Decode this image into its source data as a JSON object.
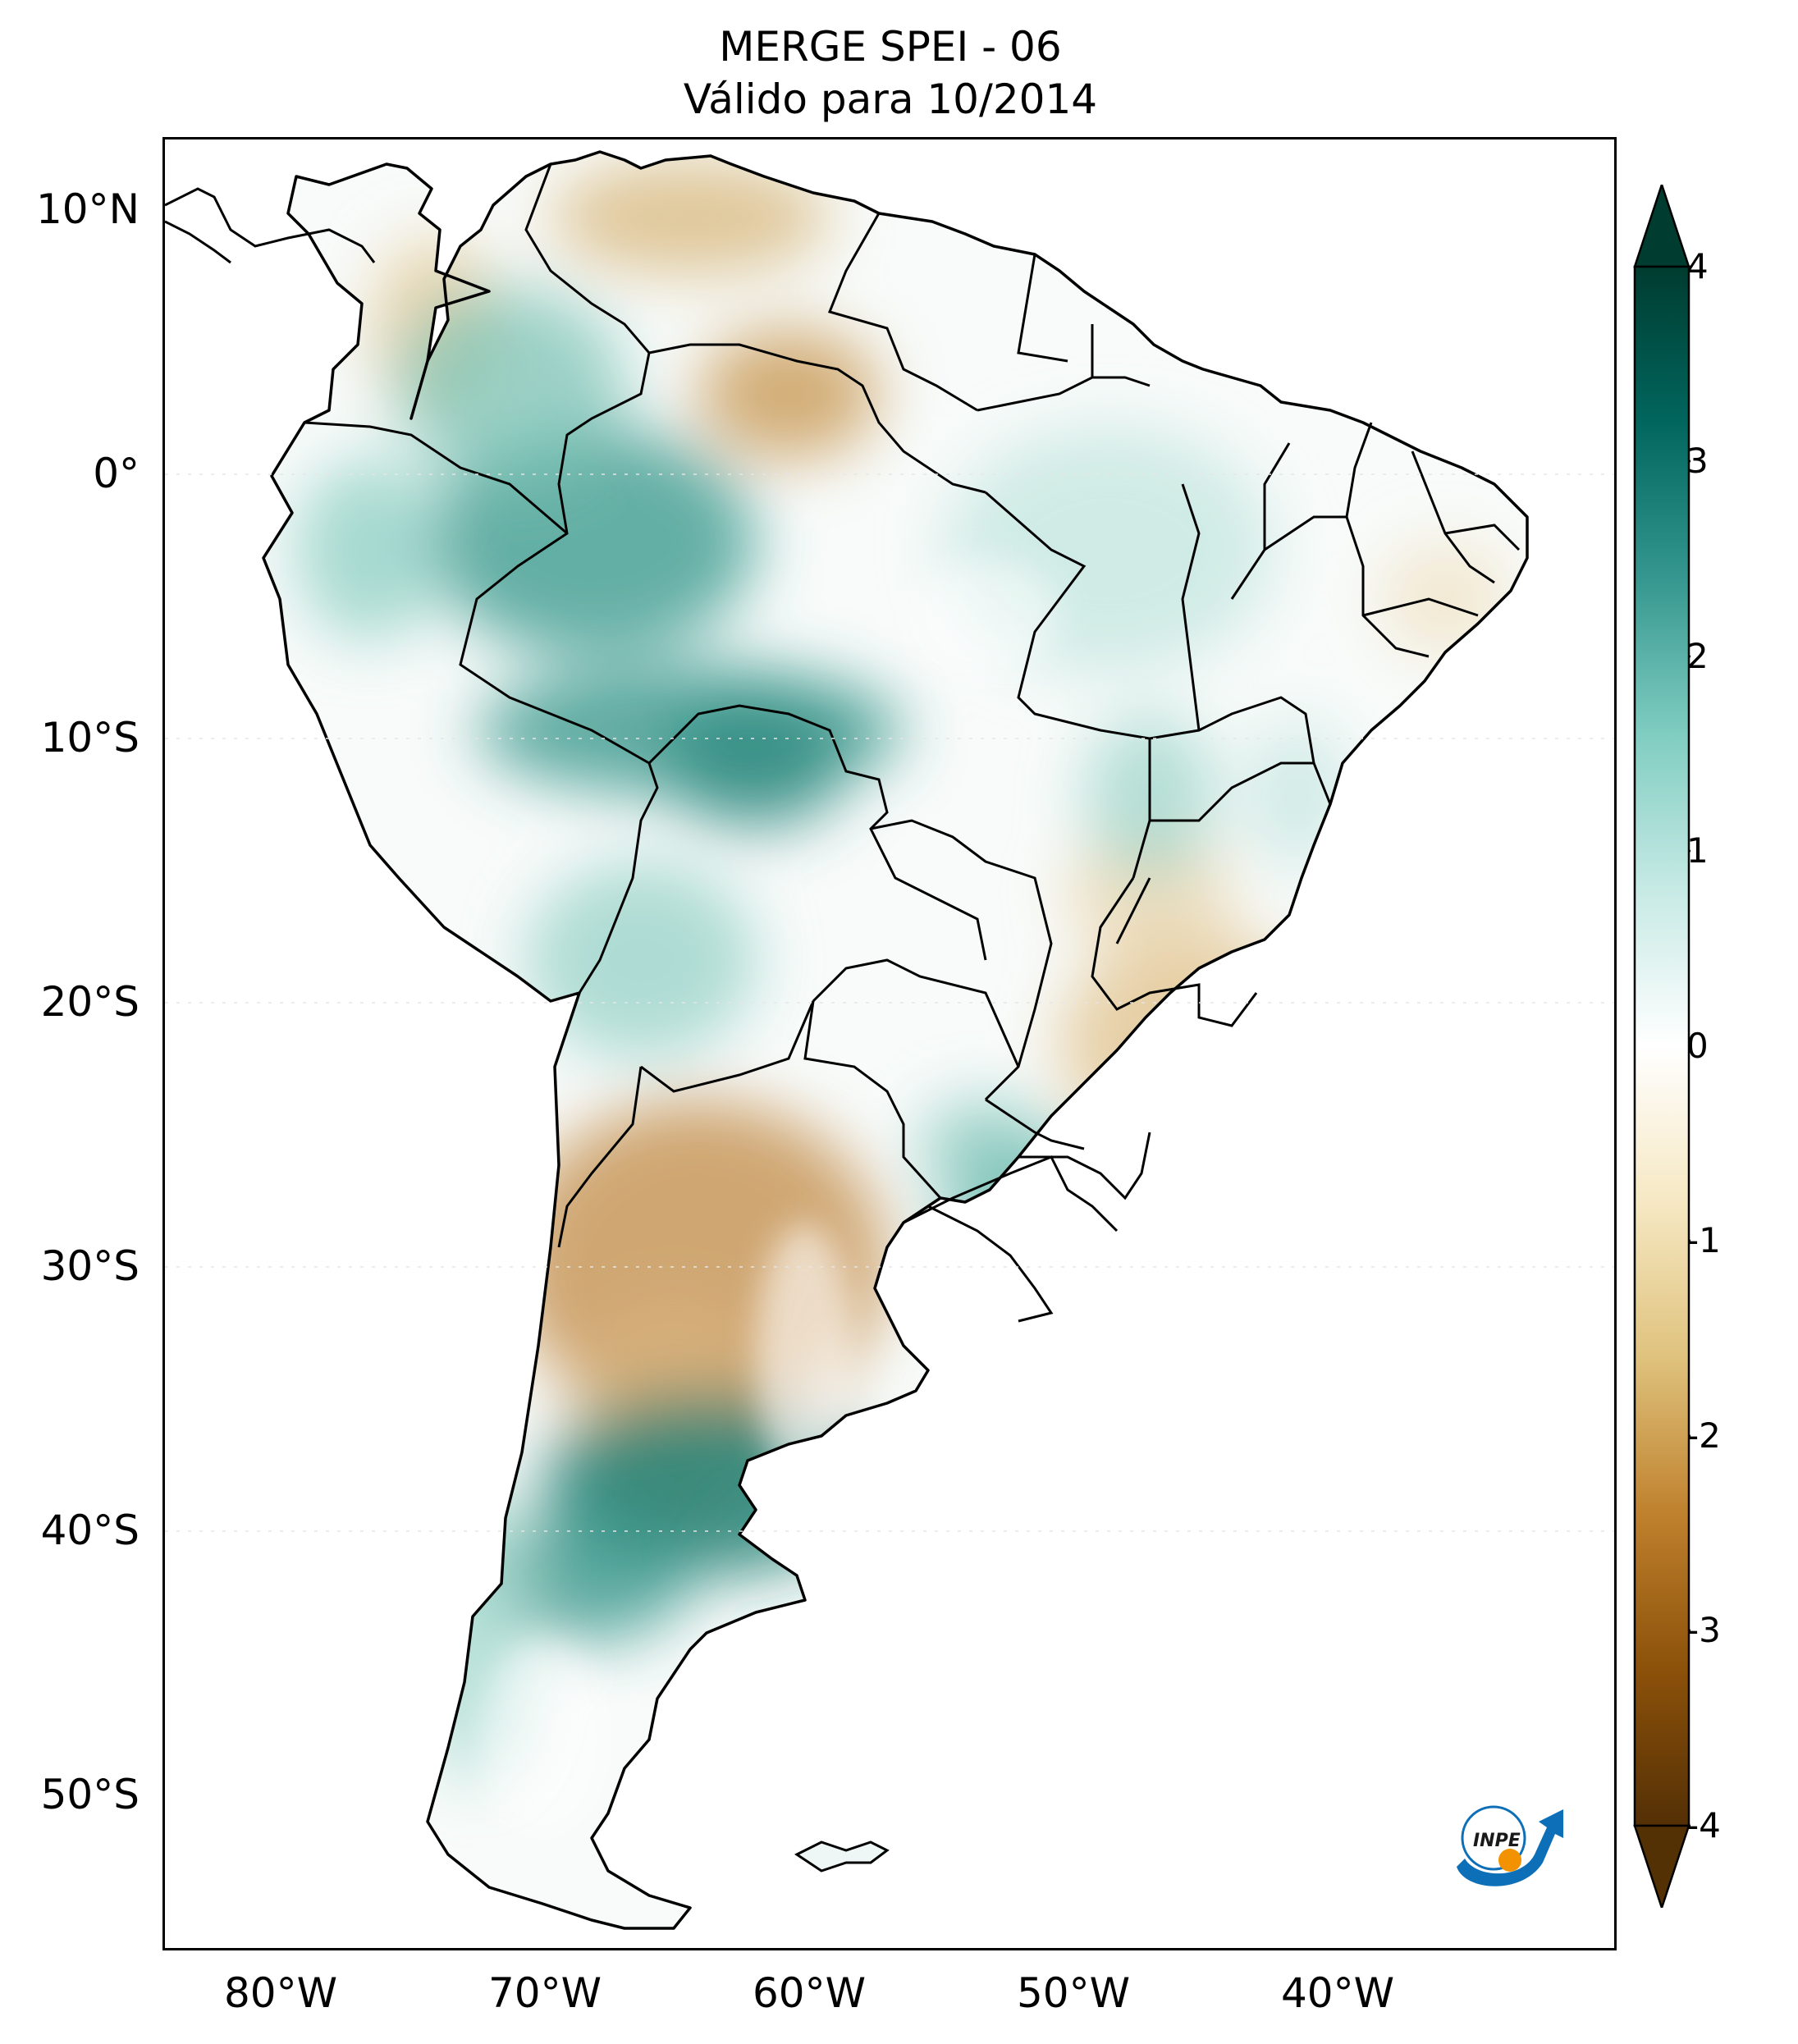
{
  "title": {
    "line1": "MERGE   SPEI - 06",
    "line2": "Válido para 10/2014"
  },
  "map": {
    "region": "South America",
    "variable": "SPEI - 06",
    "lat_labels": [
      "10°N",
      "0°",
      "10°S",
      "20°S",
      "30°S",
      "40°S",
      "50°S"
    ],
    "lon_labels": [
      "80°W",
      "70°W",
      "60°W",
      "50°W",
      "40°W"
    ],
    "lat_values": [
      10,
      0,
      -10,
      -20,
      -30,
      -40,
      -50
    ],
    "lon_values": [
      -80,
      -70,
      -60,
      -50,
      -40
    ],
    "extent": {
      "lon": [
        -85,
        -29.5
      ],
      "lat": [
        -56,
        12.5
      ]
    },
    "patterns": [
      {
        "name": "colombia-venezuela-deficit",
        "lon": -66,
        "lat": 6,
        "value": -1.2
      },
      {
        "name": "amazon-surplus",
        "lon": -67,
        "lat": -3,
        "value": 2.2
      },
      {
        "name": "west-amazon-surplus",
        "lon": -71,
        "lat": -9,
        "value": 2.0
      },
      {
        "name": "rondonia-surplus",
        "lon": -61,
        "lat": -11,
        "value": 2.2
      },
      {
        "name": "northeast-mild",
        "lon": -43,
        "lat": -6,
        "value": 0.4
      },
      {
        "name": "argentina-deficit",
        "lon": -67,
        "lat": -28,
        "value": -1.6
      },
      {
        "name": "patagonia-surplus",
        "lon": -64,
        "lat": -39,
        "value": 2.6
      },
      {
        "name": "southeast-brazil-deficit",
        "lon": -46,
        "lat": -22,
        "value": -1.1
      },
      {
        "name": "rio-grande-do-sul-surplus",
        "lon": -53,
        "lat": -29,
        "value": 1.8
      }
    ]
  },
  "colorbar": {
    "ticks": [
      "4",
      "3",
      "2",
      "1",
      "0",
      "-1",
      "-2",
      "-3",
      "-4"
    ],
    "range": [
      -4,
      4
    ],
    "colors": [
      "#543005",
      "#8c510a",
      "#bf812d",
      "#dfc27d",
      "#f6e8c3",
      "#ffffff",
      "#c7eae5",
      "#80cdc1",
      "#35978f",
      "#01665e",
      "#003c30"
    ],
    "extend": "both"
  },
  "logo": {
    "text": "INPE",
    "colors": {
      "blue": "#0d6fb8",
      "orange": "#f39200"
    }
  }
}
